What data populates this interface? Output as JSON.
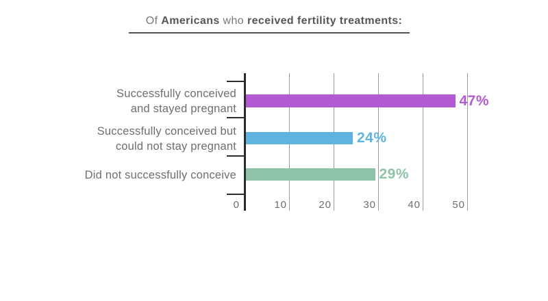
{
  "title": {
    "part1": "Of ",
    "bold1": "Americans",
    "part2": " who ",
    "bold2": "received fertility treatments:"
  },
  "chart_data": {
    "type": "bar",
    "orientation": "horizontal",
    "title": "Of Americans who received fertility treatments:",
    "categories": [
      "Successfully conceived and stayed pregnant",
      "Successfully conceived but could not stay pregnant",
      "Did not successfully conceive"
    ],
    "values": [
      47,
      24,
      29
    ],
    "value_labels": [
      "47%",
      "24%",
      "29%"
    ],
    "bar_colors": [
      "#b25ad3",
      "#5fb4de",
      "#8ec3a8"
    ],
    "x_ticks": [
      0,
      10,
      20,
      30,
      40,
      50
    ],
    "xlim": [
      0,
      55
    ],
    "grid": true,
    "legend": "none"
  },
  "rows": [
    {
      "line1": "Successfully conceived",
      "line2": "and stayed pregnant",
      "value": "47%"
    },
    {
      "line1": "Successfully conceived but",
      "line2": "could not stay pregnant",
      "value": "24%"
    },
    {
      "line1": "Did not successfully conceive",
      "line2": "",
      "value": "29%"
    }
  ],
  "x_axis": {
    "labels": [
      "0",
      "10",
      "20",
      "30",
      "40",
      "50"
    ]
  },
  "colors": {
    "purple": "#b25ad3",
    "blue": "#5fb4de",
    "green": "#8ec3a8",
    "axis": "#2b2b2d",
    "grid": "#9a9a9a",
    "label_text": "#6e6e70",
    "title_text": "#55565a"
  }
}
